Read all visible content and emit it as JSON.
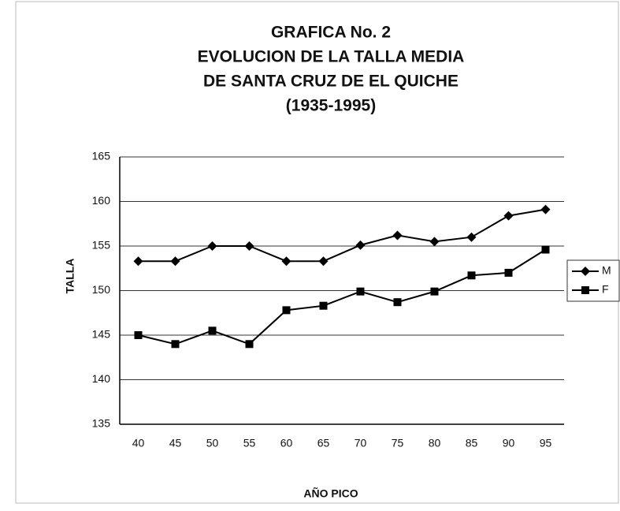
{
  "chart_data": {
    "type": "line",
    "title": [
      "GRAFICA No. 2",
      "EVOLUCION DE LA TALLA MEDIA",
      "DE SANTA CRUZ DE EL QUICHE",
      "(1935-1995)"
    ],
    "x_label": "AÑO PICO",
    "y_label": "TALLA",
    "categories": [
      "40",
      "45",
      "50",
      "55",
      "60",
      "65",
      "70",
      "75",
      "80",
      "85",
      "90",
      "95"
    ],
    "series": [
      {
        "name": "M",
        "color": "#000000",
        "marker": "diamond",
        "values": [
          153.3,
          153.3,
          155,
          155,
          153.3,
          153.3,
          155.1,
          156.2,
          155.5,
          156,
          158.4,
          159.1
        ]
      },
      {
        "name": "F",
        "color": "#000000",
        "marker": "square",
        "values": [
          145,
          144,
          145.5,
          144,
          147.8,
          148.3,
          149.9,
          148.7,
          149.9,
          151.7,
          152,
          154.6
        ]
      }
    ],
    "ylim": [
      135,
      165
    ],
    "yticks": [
      135,
      140,
      145,
      150,
      155,
      160,
      165
    ],
    "grid": true,
    "legend": "right"
  }
}
